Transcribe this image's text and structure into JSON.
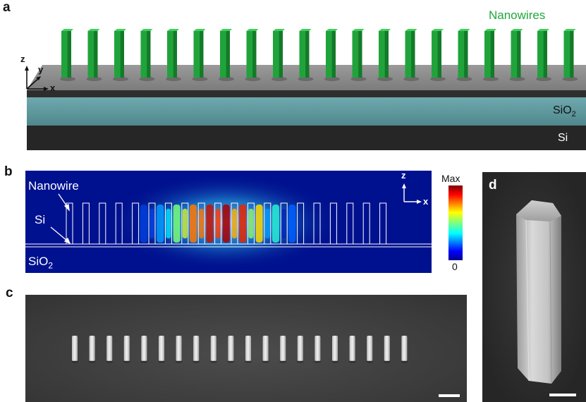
{
  "panels": {
    "a": {
      "letter": "a",
      "nanowires_label": "Nanowires",
      "sio2_prefix": "SiO",
      "sio2_sub": "2",
      "si_label": "Si",
      "axis_z": "z",
      "axis_y": "y",
      "axis_x": "x",
      "nanowire_count": 20,
      "colors": {
        "nanowire": "#21a33c",
        "nanowire_shade": "#137a28",
        "top_layer": "#8c8c8c",
        "sio2": "#5d9aa0",
        "si": "#2a2a2a",
        "label_green": "#1fa83c"
      }
    },
    "b": {
      "letter": "b",
      "nanowire_label": "Nanowire",
      "si_label": "Si",
      "sio2_prefix": "SiO",
      "sio2_sub": "2",
      "axis_z": "z",
      "axis_x": "x",
      "colorbar_max": "Max",
      "colorbar_min": "0",
      "nanowire_count": 20,
      "field_intensity": [
        0.02,
        0.03,
        0.05,
        0.08,
        0.14,
        0.3,
        0.55,
        0.8,
        0.95,
        1.0,
        0.9,
        0.72,
        0.45,
        0.22,
        0.1,
        0.06,
        0.04,
        0.03,
        0.02,
        0.02
      ],
      "colors": {
        "background": "#00118f"
      }
    },
    "c": {
      "letter": "c",
      "nanowire_count": 20
    },
    "d": {
      "letter": "d"
    }
  }
}
